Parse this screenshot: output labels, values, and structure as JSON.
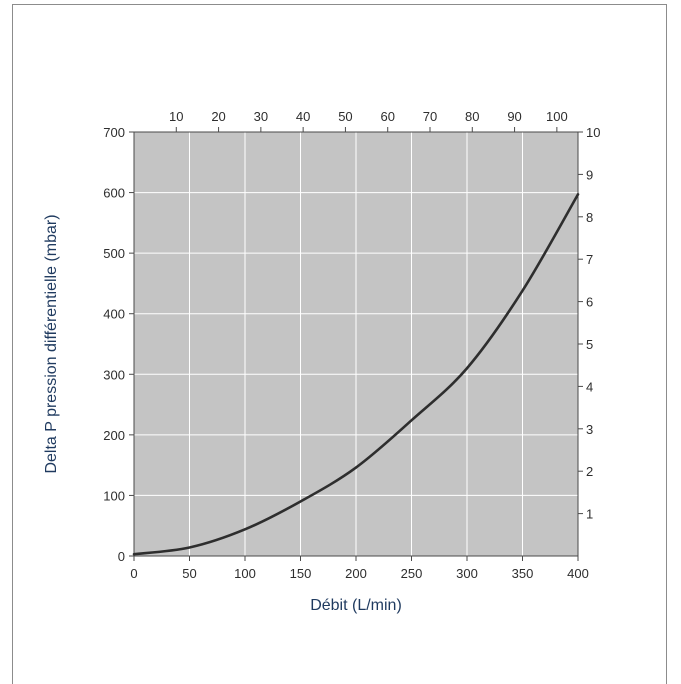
{
  "chart_data": {
    "type": "line",
    "xlabel": "Débit (L/min)",
    "ylabel": "Delta P pression différentielle (mbar)",
    "xlim": [
      0,
      400
    ],
    "ylim": [
      0,
      700
    ],
    "x_ticks": [
      0,
      50,
      100,
      150,
      200,
      250,
      300,
      350,
      400
    ],
    "y_ticks": [
      0,
      100,
      200,
      300,
      400,
      500,
      600,
      700
    ],
    "top_axis": {
      "range": [
        0,
        105
      ],
      "ticks": [
        10,
        20,
        30,
        40,
        50,
        60,
        70,
        80,
        90,
        100
      ]
    },
    "right_axis": {
      "range": [
        0,
        10
      ],
      "ticks": [
        1,
        2,
        3,
        4,
        5,
        6,
        7,
        8,
        9,
        10
      ]
    },
    "grid": true,
    "colors": {
      "plot_bg": "#c4c4c4",
      "grid": "#ffffff",
      "line": "#2e2e2e",
      "ylabel": "#1f3a5f"
    },
    "series": [
      {
        "x": [
          0,
          50,
          100,
          150,
          200,
          250,
          300,
          350,
          400
        ],
        "values": [
          3,
          14,
          44,
          90,
          146,
          224,
          310,
          438,
          597
        ]
      }
    ]
  }
}
